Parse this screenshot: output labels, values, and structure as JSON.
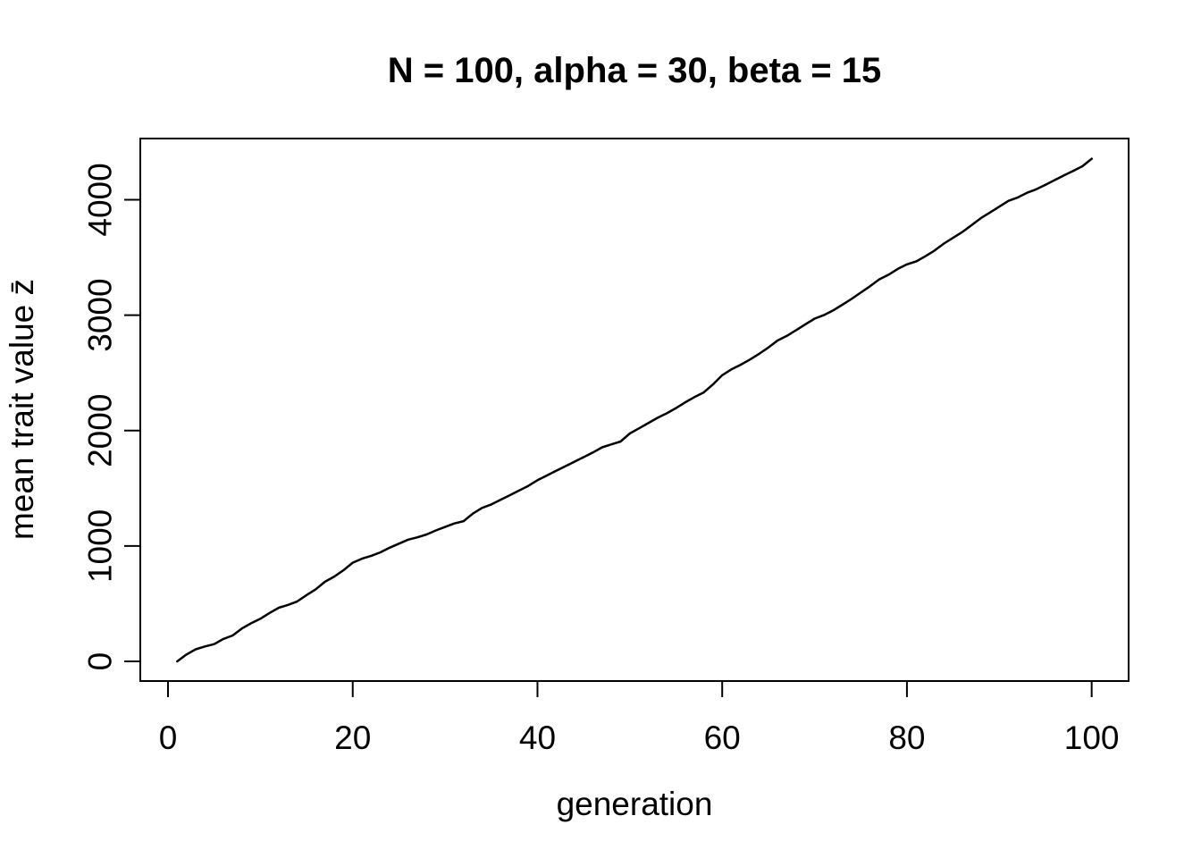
{
  "colors": {
    "background": "#ffffff",
    "line": "#000000",
    "axis": "#000000",
    "text": "#000000"
  },
  "chart_data": {
    "type": "line",
    "title": "N = 100, alpha = 30, beta = 15",
    "xlabel": "generation",
    "ylabel": "mean trait value z̄",
    "x_ticks": [
      0,
      20,
      40,
      60,
      80,
      100
    ],
    "y_ticks": [
      0,
      1000,
      2000,
      3000,
      4000
    ],
    "xlim": [
      -3,
      104
    ],
    "ylim": [
      -170,
      4530
    ],
    "grid": false,
    "legend": "none",
    "x_description": "generation 1 to 100, step 1",
    "series": [
      {
        "name": "mean trait value",
        "x_start": 1,
        "x_step": 1,
        "values": [
          0,
          60,
          105,
          130,
          150,
          195,
          225,
          285,
          330,
          370,
          420,
          465,
          490,
          520,
          575,
          625,
          690,
          735,
          790,
          855,
          890,
          915,
          945,
          985,
          1020,
          1055,
          1075,
          1100,
          1135,
          1165,
          1195,
          1215,
          1280,
          1330,
          1360,
          1400,
          1440,
          1480,
          1520,
          1570,
          1610,
          1650,
          1690,
          1730,
          1770,
          1810,
          1855,
          1880,
          1905,
          1975,
          2020,
          2065,
          2110,
          2150,
          2195,
          2245,
          2290,
          2330,
          2400,
          2480,
          2530,
          2570,
          2615,
          2665,
          2720,
          2780,
          2820,
          2870,
          2920,
          2970,
          3000,
          3040,
          3090,
          3140,
          3195,
          3250,
          3310,
          3350,
          3400,
          3440,
          3465,
          3510,
          3560,
          3620,
          3670,
          3720,
          3780,
          3840,
          3890,
          3940,
          3990,
          4020,
          4060,
          4090,
          4130,
          4170,
          4210,
          4250,
          4290,
          4355
        ]
      }
    ]
  }
}
